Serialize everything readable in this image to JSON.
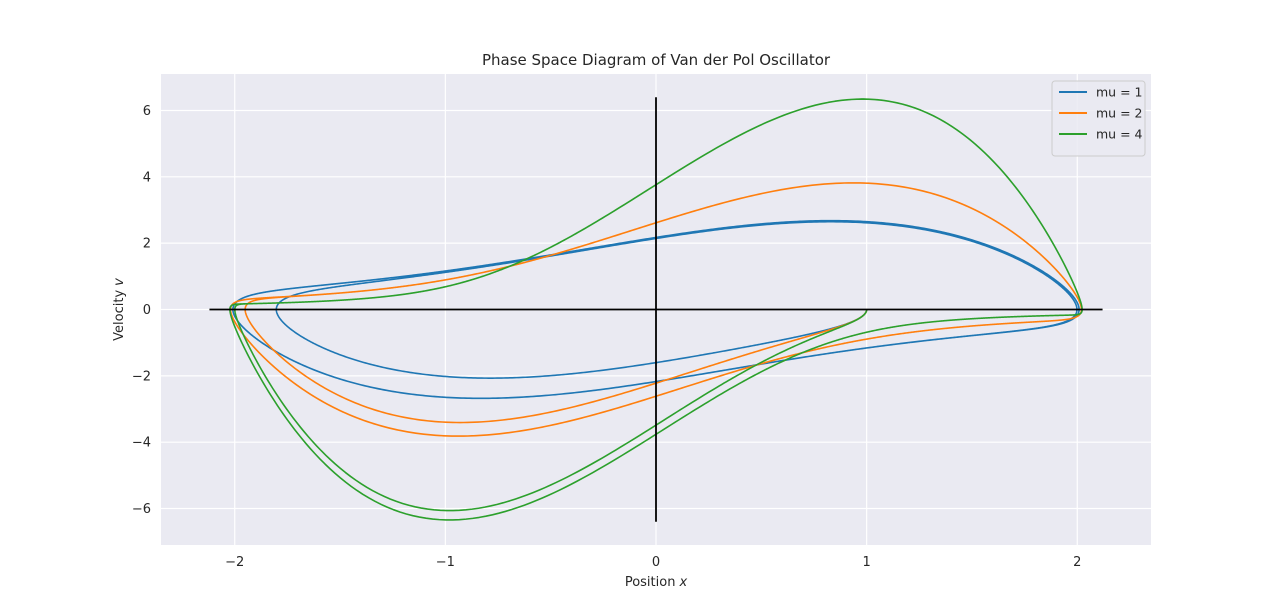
{
  "chart_data": {
    "type": "line",
    "title": "Phase Space Diagram of Van der Pol Oscillator",
    "xlabel": "Position",
    "xlabel_var": "x",
    "ylabel": "Velocity",
    "ylabel_var": "v",
    "xlim": [
      -2.35,
      2.35
    ],
    "ylim": [
      -7.1,
      7.1
    ],
    "xticks": [
      -2,
      -1,
      0,
      1,
      2
    ],
    "xtick_labels": [
      "−2",
      "−1",
      "0",
      "1",
      "2"
    ],
    "yticks": [
      -6,
      -4,
      -2,
      0,
      2,
      4,
      6
    ],
    "ytick_labels": [
      "−6",
      "−4",
      "−2",
      "0",
      "2",
      "4",
      "6"
    ],
    "grid": true,
    "legend_position": "top-right",
    "reference_lines": {
      "horizontal": {
        "y": 0,
        "x_from": -2.12,
        "x_to": 2.12
      },
      "vertical": {
        "x": 0,
        "y_from": -6.4,
        "y_to": 6.4
      }
    },
    "initial_condition": {
      "x": 1,
      "v": 0
    },
    "series": [
      {
        "name": "mu = 1",
        "mu": 1,
        "color": "#1f77b4"
      },
      {
        "name": "mu = 2",
        "mu": 2,
        "color": "#ff7f0e"
      },
      {
        "name": "mu = 4",
        "mu": 4,
        "color": "#2ca02c"
      }
    ]
  },
  "colors": {
    "plot_background": "#eaeaf2",
    "grid": "#ffffff",
    "reference_lines": "#000000",
    "text": "#262626"
  }
}
